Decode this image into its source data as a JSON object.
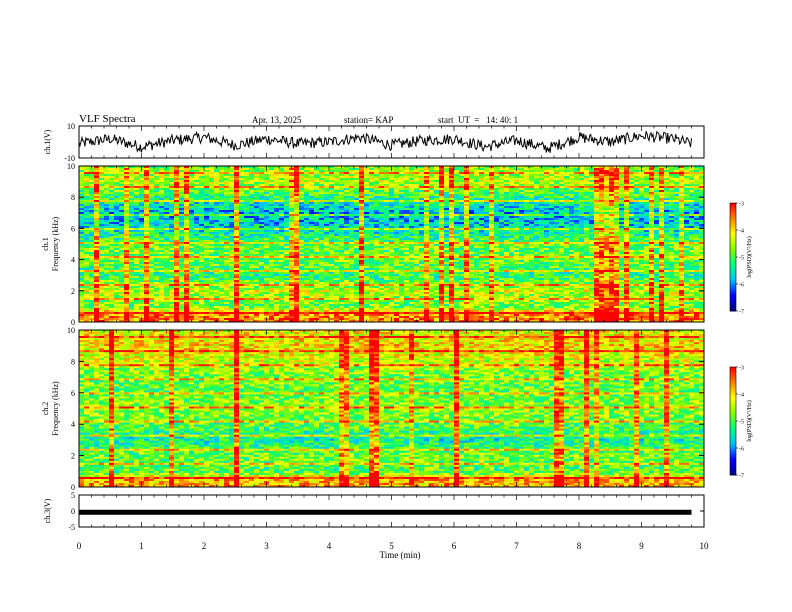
{
  "header": {
    "title": "VLF Spectra",
    "date": "Apr. 13, 2025",
    "station": "station= KAP",
    "start": "start  UT  =   14: 40: 1"
  },
  "colors": {
    "trace": "#000000",
    "colormap": [
      "#000080",
      "#0000ff",
      "#00bfff",
      "#00ff80",
      "#80ff00",
      "#ffff00",
      "#ff8000",
      "#ff0000"
    ]
  },
  "chart_data": [
    {
      "type": "line",
      "panel": "ch1-waveform",
      "ylabel": "ch.1(V)",
      "ylim": [
        -10,
        10
      ],
      "yticks": [
        "10",
        "-10"
      ],
      "xlim": [
        0,
        10
      ],
      "x": [
        0,
        0.5,
        1,
        1.5,
        2,
        2.5,
        3,
        3.5,
        4,
        4.5,
        5,
        5.5,
        6,
        6.5,
        7,
        7.5,
        8,
        8.5,
        9,
        9.5,
        9.8
      ],
      "values": [
        -1,
        2,
        -3,
        1,
        3,
        -2,
        2,
        -1,
        0,
        3,
        -2,
        1,
        2,
        -3,
        1,
        -4,
        3,
        0,
        4,
        2,
        -1
      ]
    },
    {
      "type": "heatmap",
      "panel": "ch1-spectrogram",
      "ylabel": "ch.1\nFrequency (kHz)",
      "ylim": [
        0,
        10
      ],
      "yticks": [
        "0",
        "2",
        "4",
        "6",
        "8",
        "10"
      ],
      "xlim": [
        0,
        10
      ],
      "colorbar": {
        "label": "log(PSD)(V²/Hz)",
        "range": [
          -7,
          -3
        ],
        "ticks": [
          "-3",
          "-4",
          "-5",
          "-6",
          "-7"
        ]
      },
      "freq_khz": [
        0.5,
        1,
        2,
        3,
        4,
        5,
        6,
        7,
        8,
        9,
        9.8
      ],
      "mean_log_psd": [
        -3.6,
        -4.9,
        -4.4,
        -5.2,
        -4.8,
        -4.9,
        -5.6,
        -5.8,
        -5.2,
        -4.5,
        -4.7
      ]
    },
    {
      "type": "heatmap",
      "panel": "ch2-spectrogram",
      "ylabel": "ch.2\nFrequency (kHz)",
      "ylim": [
        0,
        10
      ],
      "yticks": [
        "0",
        "2",
        "4",
        "6",
        "8",
        "10"
      ],
      "xlim": [
        0,
        10
      ],
      "colorbar": {
        "label": "log(PSD)(V²/Hz)",
        "range": [
          -7,
          -3
        ],
        "ticks": [
          "-3",
          "-4",
          "-5",
          "-6",
          "-7"
        ]
      },
      "freq_khz": [
        0.5,
        1,
        2,
        3,
        4,
        5,
        6,
        7,
        8,
        9,
        9.8
      ],
      "mean_log_psd": [
        -3.8,
        -5.0,
        -4.8,
        -5.4,
        -4.9,
        -4.6,
        -4.9,
        -4.8,
        -4.4,
        -4.0,
        -4.2
      ]
    },
    {
      "type": "line",
      "panel": "ch3-waveform",
      "ylabel": "ch.3(V)",
      "ylim": [
        -5,
        5
      ],
      "yticks": [
        "5",
        "0",
        "-5"
      ],
      "xlim": [
        0,
        10
      ],
      "xticks": [
        "0",
        "1",
        "2",
        "3",
        "4",
        "5",
        "6",
        "7",
        "8",
        "9",
        "10"
      ],
      "xlabel": "Time (min)",
      "x": [
        0,
        9.8
      ],
      "values": [
        -0.4,
        -0.4
      ]
    }
  ]
}
